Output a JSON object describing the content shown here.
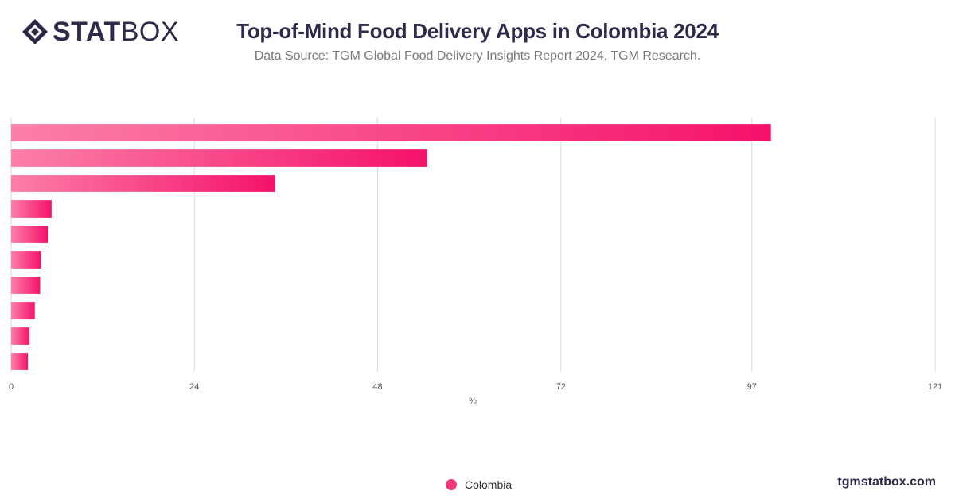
{
  "brand": {
    "logo_bold": "STAT",
    "logo_light": "BOX"
  },
  "header": {
    "title": "Top-of-Mind Food Delivery Apps in Colombia  2024",
    "subtitle": "Data Source: TGM Global Food Delivery Insights Report 2024, TGM Research."
  },
  "footer": {
    "site": "tgmstatbox.com"
  },
  "colors": {
    "bar_start": "#fb7fa9",
    "bar_end": "#f5126a",
    "grid": "#d9d9d9",
    "text": "#2d2b4a"
  },
  "chart_data": {
    "type": "bar",
    "orientation": "horizontal",
    "xlabel": "%",
    "xlim": [
      0,
      121
    ],
    "xticks": [
      0,
      24,
      48,
      72,
      97,
      121
    ],
    "grid": true,
    "legend_position": "bottom-center",
    "categories": [
      "",
      "",
      "",
      "",
      "",
      "",
      "",
      "",
      "",
      ""
    ],
    "series": [
      {
        "name": "Colombia",
        "values": [
          99.5,
          54.5,
          34.6,
          5.3,
          4.8,
          3.9,
          3.8,
          3.1,
          2.4,
          2.2
        ]
      }
    ]
  }
}
